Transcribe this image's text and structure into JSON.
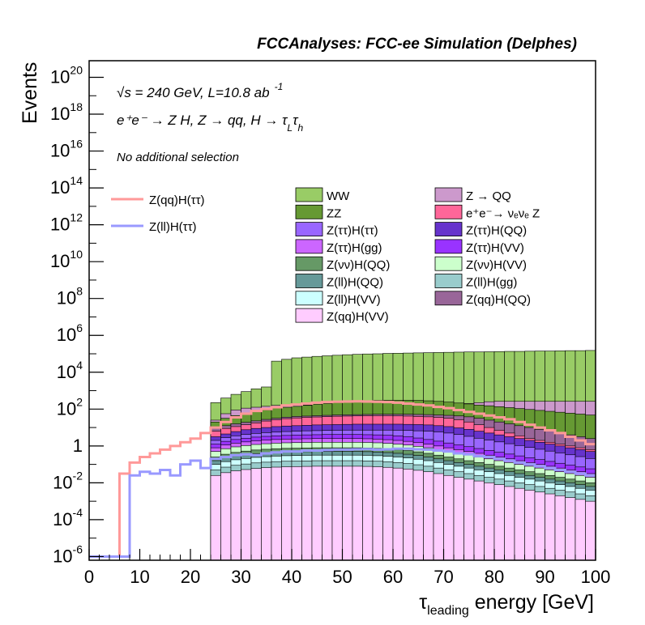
{
  "chart_data": {
    "type": "histogram-stacked",
    "title": "FCCAnalyses: FCC-ee Simulation (Delphes)",
    "annotations": {
      "energy": "√s = 240 GeV, L=10.8 ab",
      "energy_exp": "-1",
      "process_main": "e⁺e⁻ → Z H, Z  → qq, H  →  τ",
      "process_sub1": "L",
      "process_mid": "τ",
      "process_sub2": "h",
      "selection": "No additional selection"
    },
    "ylabel": "Events",
    "xlabel_main": "τ",
    "xlabel_sub": "leading",
    "xlabel_rest": " energy [GeV]",
    "x_ticks": [
      "0",
      "10",
      "20",
      "30",
      "40",
      "50",
      "60",
      "70",
      "80",
      "90",
      "100"
    ],
    "y_ticks": [
      {
        "base": "10",
        "exp": "-6"
      },
      {
        "base": "10",
        "exp": "-4"
      },
      {
        "base": "10",
        "exp": "-2"
      },
      {
        "base": "1",
        "exp": ""
      },
      {
        "base": "10",
        "exp": "2"
      },
      {
        "base": "10",
        "exp": "4"
      },
      {
        "base": "10",
        "exp": "6"
      },
      {
        "base": "10",
        "exp": "8"
      },
      {
        "base": "10",
        "exp": "10"
      },
      {
        "base": "10",
        "exp": "12"
      },
      {
        "base": "10",
        "exp": "14"
      },
      {
        "base": "10",
        "exp": "16"
      },
      {
        "base": "10",
        "exp": "18"
      },
      {
        "base": "10",
        "exp": "20"
      }
    ],
    "xlim": [
      0,
      100
    ],
    "ylim_log10": [
      -6.2,
      20.9
    ],
    "log_y": true,
    "bin_width": 2,
    "background_layers": [
      {
        "name": "WW",
        "color": "#99cc66",
        "log_levels": [
          -9,
          -9,
          -9,
          -9,
          -9,
          -9,
          -9,
          -9,
          -9,
          -9,
          -9,
          -9,
          2.35,
          2.6,
          2.8,
          2.95,
          3.1,
          3.2,
          4.6,
          4.7,
          4.78,
          4.82,
          4.86,
          4.89,
          4.92,
          4.95,
          4.97,
          4.99,
          5.0,
          5.02,
          5.03,
          5.04,
          5.05,
          5.06,
          5.07,
          5.08,
          5.09,
          5.1,
          5.1,
          5.11,
          5.12,
          5.13,
          5.13,
          5.14,
          5.15,
          5.15,
          5.16,
          5.17,
          5.17,
          5.18
        ]
      },
      {
        "name": "Z → QQ",
        "color": "#cc99cc",
        "log_levels": [
          -9,
          -9,
          -9,
          -9,
          -9,
          -9,
          -9,
          -9,
          -9,
          -9,
          -9,
          -9,
          1.4,
          1.75,
          1.95,
          2.05,
          2.1,
          2.15,
          2.2,
          2.22,
          2.23,
          2.23,
          2.23,
          2.23,
          2.23,
          2.24,
          2.24,
          2.24,
          2.24,
          2.24,
          2.24,
          2.25,
          2.25,
          2.25,
          2.25,
          2.25,
          2.25,
          2.3,
          2.35,
          2.4,
          2.42,
          2.42,
          2.42,
          2.42,
          2.42,
          2.42,
          2.42,
          2.42,
          2.42,
          2.42
        ]
      },
      {
        "name": "ZZ",
        "color": "#669933",
        "log_levels": [
          -9,
          -9,
          -9,
          -9,
          -9,
          -9,
          -9,
          -9,
          -9,
          -9,
          -9,
          -9,
          1.3,
          1.5,
          1.65,
          1.75,
          1.85,
          1.95,
          2.05,
          2.1,
          2.15,
          2.2,
          2.25,
          2.3,
          2.35,
          2.4,
          2.43,
          2.45,
          2.47,
          2.48,
          2.48,
          2.48,
          2.47,
          2.45,
          2.42,
          2.38,
          2.33,
          2.28,
          2.22,
          2.18,
          2.13,
          2.08,
          2.03,
          1.98,
          1.93,
          1.88,
          1.83,
          1.78,
          1.73,
          1.68
        ]
      },
      {
        "name": "Z(qq)H(QQ)",
        "color": "#996699",
        "log_levels": [
          -9,
          -9,
          -9,
          -9,
          -9,
          -9,
          -9,
          -9,
          -9,
          -9,
          -9,
          -9,
          1.0,
          1.1,
          1.2,
          1.28,
          1.36,
          1.44,
          1.5,
          1.56,
          1.6,
          1.62,
          1.64,
          1.66,
          1.68,
          1.69,
          1.7,
          1.71,
          1.72,
          1.72,
          1.72,
          1.72,
          1.71,
          1.7,
          1.68,
          1.66,
          1.63,
          1.58,
          1.5,
          1.4,
          1.3,
          1.2,
          1.1,
          1.0,
          0.9,
          0.8,
          0.7,
          0.6,
          0.5,
          0.4
        ]
      },
      {
        "name": "e⁺e⁻ → νₑνₑ Z",
        "color": "#ff6699",
        "log_levels": [
          -9,
          -9,
          -9,
          -9,
          -9,
          -9,
          -9,
          -9,
          -9,
          -9,
          -9,
          -9,
          0.8,
          0.95,
          1.05,
          1.15,
          1.25,
          1.35,
          1.42,
          1.48,
          1.52,
          1.55,
          1.57,
          1.59,
          1.61,
          1.62,
          1.63,
          1.64,
          1.64,
          1.64,
          1.63,
          1.62,
          1.6,
          1.58,
          1.55,
          1.5,
          1.42,
          1.3,
          1.15,
          1.0,
          0.85,
          0.7,
          0.55,
          0.4,
          0.3,
          0.2,
          0.1,
          0.0,
          -0.1,
          -0.2
        ]
      },
      {
        "name": "Z(ττ)H(QQ)",
        "color": "#6633cc",
        "log_levels": [
          -9,
          -9,
          -9,
          -9,
          -9,
          -9,
          -9,
          -9,
          -9,
          -9,
          -9,
          -9,
          0.5,
          0.65,
          0.78,
          0.88,
          0.95,
          1.0,
          1.05,
          1.08,
          1.1,
          1.12,
          1.14,
          1.15,
          1.16,
          1.17,
          1.18,
          1.18,
          1.18,
          1.18,
          1.18,
          1.17,
          1.16,
          1.14,
          1.1,
          1.05,
          0.98,
          0.9,
          0.8,
          0.7,
          0.6,
          0.5,
          0.4,
          0.3,
          0.2,
          0.1,
          0.0,
          -0.1,
          -0.2,
          -0.3
        ]
      },
      {
        "name": "Z(ττ)H(ττ)",
        "color": "#9966ff",
        "log_levels": [
          -9,
          -9,
          -9,
          -9,
          -9,
          -9,
          -9,
          -9,
          -9,
          -9,
          -9,
          -9,
          0.3,
          0.45,
          0.55,
          0.62,
          0.68,
          0.72,
          0.75,
          0.78,
          0.8,
          0.82,
          0.83,
          0.84,
          0.85,
          0.86,
          0.86,
          0.86,
          0.86,
          0.86,
          0.85,
          0.84,
          0.82,
          0.8,
          0.76,
          0.7,
          0.62,
          0.52,
          0.42,
          0.32,
          0.22,
          0.12,
          0.02,
          -0.08,
          -0.18,
          -0.28,
          -0.38,
          -0.48,
          -0.58,
          -0.68
        ]
      },
      {
        "name": "Z(ττ)H(VV)",
        "color": "#9933ff",
        "log_levels": [
          -9,
          -9,
          -9,
          -9,
          -9,
          -9,
          -9,
          -9,
          -9,
          -9,
          -9,
          -9,
          0.1,
          0.25,
          0.35,
          0.42,
          0.48,
          0.52,
          0.55,
          0.57,
          0.59,
          0.6,
          0.61,
          0.62,
          0.62,
          0.62,
          0.62,
          0.61,
          0.6,
          0.58,
          0.55,
          0.5,
          0.43,
          0.35,
          0.26,
          0.16,
          0.06,
          -0.04,
          -0.14,
          -0.24,
          -0.34,
          -0.44,
          -0.54,
          -0.64,
          -0.74,
          -0.84,
          -0.94,
          -1.04,
          -1.14,
          -1.24
        ]
      },
      {
        "name": "Z(ττ)H(gg)",
        "color": "#cc66ff",
        "log_levels": [
          -9,
          -9,
          -9,
          -9,
          -9,
          -9,
          -9,
          -9,
          -9,
          -9,
          -9,
          -9,
          -0.1,
          0.05,
          0.15,
          0.22,
          0.28,
          0.32,
          0.35,
          0.37,
          0.38,
          0.39,
          0.4,
          0.4,
          0.4,
          0.4,
          0.4,
          0.39,
          0.37,
          0.34,
          0.3,
          0.25,
          0.18,
          0.1,
          0.0,
          -0.1,
          -0.2,
          -0.3,
          -0.4,
          -0.5,
          -0.6,
          -0.7,
          -0.8,
          -0.9,
          -1.0,
          -1.1,
          -1.2,
          -1.3,
          -1.4,
          -1.5
        ]
      },
      {
        "name": "Z(νν)H(VV)",
        "color": "#ccffcc",
        "log_levels": [
          -9,
          -9,
          -9,
          -9,
          -9,
          -9,
          -9,
          -9,
          -9,
          -9,
          -9,
          -9,
          -0.3,
          -0.15,
          -0.05,
          0.02,
          0.08,
          0.12,
          0.15,
          0.17,
          0.18,
          0.19,
          0.2,
          0.2,
          0.2,
          0.2,
          0.2,
          0.19,
          0.17,
          0.14,
          0.1,
          0.05,
          -0.02,
          -0.1,
          -0.2,
          -0.3,
          -0.4,
          -0.5,
          -0.6,
          -0.7,
          -0.8,
          -0.9,
          -1.0,
          -1.1,
          -1.2,
          -1.3,
          -1.4,
          -1.5,
          -1.6,
          -1.7
        ]
      },
      {
        "name": "Z(νν)H(QQ)",
        "color": "#669966",
        "log_levels": [
          -9,
          -9,
          -9,
          -9,
          -9,
          -9,
          -9,
          -9,
          -9,
          -9,
          -9,
          -9,
          -0.6,
          -0.45,
          -0.35,
          -0.28,
          -0.22,
          -0.18,
          -0.15,
          -0.13,
          -0.12,
          -0.11,
          -0.1,
          -0.1,
          -0.1,
          -0.1,
          -0.1,
          -0.11,
          -0.13,
          -0.16,
          -0.2,
          -0.25,
          -0.32,
          -0.4,
          -0.5,
          -0.6,
          -0.7,
          -0.8,
          -0.9,
          -1.0,
          -1.1,
          -1.2,
          -1.3,
          -1.4,
          -1.5,
          -1.6,
          -1.7,
          -1.8,
          -1.9,
          -2.0
        ]
      },
      {
        "name": "Z(ll)H(QQ)",
        "color": "#669999",
        "log_levels": [
          -9,
          -9,
          -9,
          -9,
          -9,
          -9,
          -9,
          -9,
          -9,
          -9,
          -9,
          -9,
          -0.8,
          -0.65,
          -0.55,
          -0.48,
          -0.42,
          -0.38,
          -0.35,
          -0.33,
          -0.32,
          -0.31,
          -0.3,
          -0.3,
          -0.3,
          -0.3,
          -0.3,
          -0.31,
          -0.33,
          -0.36,
          -0.4,
          -0.45,
          -0.52,
          -0.6,
          -0.7,
          -0.8,
          -0.9,
          -1.0,
          -1.1,
          -1.2,
          -1.3,
          -1.4,
          -1.5,
          -1.6,
          -1.7,
          -1.8,
          -1.9,
          -2.0,
          -2.1,
          -2.2
        ]
      },
      {
        "name": "Z(ll)H(VV)",
        "color": "#ccffff",
        "log_levels": [
          -9,
          -9,
          -9,
          -9,
          -9,
          -9,
          -9,
          -9,
          -9,
          -9,
          -9,
          -9,
          -1.0,
          -0.85,
          -0.75,
          -0.68,
          -0.62,
          -0.58,
          -0.55,
          -0.53,
          -0.52,
          -0.51,
          -0.5,
          -0.5,
          -0.5,
          -0.5,
          -0.5,
          -0.51,
          -0.53,
          -0.56,
          -0.6,
          -0.65,
          -0.72,
          -0.8,
          -0.9,
          -1.0,
          -1.1,
          -1.2,
          -1.3,
          -1.4,
          -1.5,
          -1.6,
          -1.7,
          -1.8,
          -1.9,
          -2.0,
          -2.1,
          -2.2,
          -2.3,
          -2.4
        ]
      },
      {
        "name": "Z(ll)H(gg)",
        "color": "#99cccc",
        "log_levels": [
          -9,
          -9,
          -9,
          -9,
          -9,
          -9,
          -9,
          -9,
          -9,
          -9,
          -9,
          -9,
          -1.3,
          -1.15,
          -1.05,
          -0.98,
          -0.92,
          -0.88,
          -0.85,
          -0.83,
          -0.82,
          -0.81,
          -0.8,
          -0.8,
          -0.8,
          -0.8,
          -0.8,
          -0.81,
          -0.83,
          -0.86,
          -0.9,
          -0.95,
          -1.02,
          -1.1,
          -1.2,
          -1.3,
          -1.4,
          -1.5,
          -1.6,
          -1.7,
          -1.8,
          -1.9,
          -2.0,
          -2.1,
          -2.2,
          -2.3,
          -2.4,
          -2.5,
          -2.6,
          -2.7
        ]
      },
      {
        "name": "Z(qq)H(VV)",
        "color": "#ffccff",
        "log_levels": [
          -9,
          -9,
          -9,
          -9,
          -9,
          -9,
          -9,
          -9,
          -9,
          -9,
          -9,
          -9,
          -1.6,
          -1.45,
          -1.35,
          -1.28,
          -1.22,
          -1.18,
          -1.15,
          -1.13,
          -1.12,
          -1.11,
          -1.1,
          -1.1,
          -1.1,
          -1.1,
          -1.1,
          -1.11,
          -1.13,
          -1.16,
          -1.2,
          -1.25,
          -1.32,
          -1.4,
          -1.5,
          -1.6,
          -1.7,
          -1.8,
          -1.9,
          -2.0,
          -2.1,
          -2.2,
          -2.3,
          -2.4,
          -2.5,
          -2.6,
          -2.7,
          -2.8,
          -2.9,
          -3.0
        ]
      }
    ],
    "step_series": [
      {
        "name": "Z(qq)H(ττ)",
        "color": "#ff9999",
        "log_values": [
          -6.0,
          -6.0,
          -6.0,
          -1.5,
          -0.9,
          -0.6,
          -0.4,
          -0.2,
          0.0,
          0.2,
          0.4,
          0.7,
          1.0,
          1.3,
          1.55,
          1.75,
          1.9,
          2.0,
          2.1,
          2.2,
          2.25,
          2.3,
          2.35,
          2.38,
          2.4,
          2.41,
          2.42,
          2.41,
          2.4,
          2.38,
          2.35,
          2.3,
          2.25,
          2.2,
          2.12,
          2.05,
          1.95,
          1.85,
          1.75,
          1.65,
          1.55,
          1.45,
          1.3,
          1.15,
          1.0,
          0.85,
          0.7,
          0.5,
          0.3,
          0.1
        ]
      },
      {
        "name": "Z(ll)H(ττ)",
        "color": "#9999ff",
        "log_values": [
          -6.0,
          -6.0,
          -6.0,
          -6.0,
          -1.6,
          -1.4,
          -1.5,
          -1.3,
          -1.6,
          -1.0,
          -0.8,
          -1.2,
          -0.7,
          -0.6,
          -0.5,
          -0.45,
          -0.5,
          -0.4,
          -0.35,
          -0.3,
          -0.3,
          -0.25,
          -0.25,
          -0.22,
          -0.2,
          -0.2,
          -0.18,
          -0.17,
          -0.2,
          -0.18,
          -0.15,
          -0.15,
          -0.18,
          -0.2,
          -0.25,
          -0.3,
          -0.4,
          -0.45,
          -0.55,
          -0.6,
          -0.7,
          -0.8,
          -0.9,
          -1.0,
          -1.1,
          -1.2,
          -1.3,
          -1.4,
          -1.5,
          -1.6
        ]
      }
    ],
    "legend": [
      {
        "name": "WW",
        "color": "#99cc66",
        "col": 0,
        "row": 0
      },
      {
        "name": "ZZ",
        "color": "#669933",
        "col": 0,
        "row": 1
      },
      {
        "name": "Z(ττ)H(ττ)",
        "color": "#9966ff",
        "col": 0,
        "row": 2
      },
      {
        "name": "Z(ττ)H(gg)",
        "color": "#cc66ff",
        "col": 0,
        "row": 3
      },
      {
        "name": "Z(νν)H(QQ)",
        "color": "#669966",
        "col": 0,
        "row": 4
      },
      {
        "name": "Z(ll)H(QQ)",
        "color": "#669999",
        "col": 0,
        "row": 5
      },
      {
        "name": "Z(ll)H(VV)",
        "color": "#ccffff",
        "col": 0,
        "row": 6
      },
      {
        "name": "Z(qq)H(VV)",
        "color": "#ffccff",
        "col": 0,
        "row": 7
      },
      {
        "name": "Z → QQ",
        "color": "#cc99cc",
        "col": 1,
        "row": 0
      },
      {
        "name": "e⁺e⁻→ νₑνₑ Z",
        "color": "#ff6699",
        "col": 1,
        "row": 1
      },
      {
        "name": "Z(ττ)H(QQ)",
        "color": "#6633cc",
        "col": 1,
        "row": 2
      },
      {
        "name": "Z(ττ)H(VV)",
        "color": "#9933ff",
        "col": 1,
        "row": 3
      },
      {
        "name": "Z(νν)H(VV)",
        "color": "#ccffcc",
        "col": 1,
        "row": 4
      },
      {
        "name": "Z(ll)H(gg)",
        "color": "#99cccc",
        "col": 1,
        "row": 5
      },
      {
        "name": "Z(qq)H(QQ)",
        "color": "#996699",
        "col": 1,
        "row": 6
      }
    ],
    "line_legend": [
      {
        "name": "Z(qq)H(ττ)",
        "color": "#ff9999"
      },
      {
        "name": "Z(ll)H(ττ)",
        "color": "#9999ff"
      }
    ]
  }
}
